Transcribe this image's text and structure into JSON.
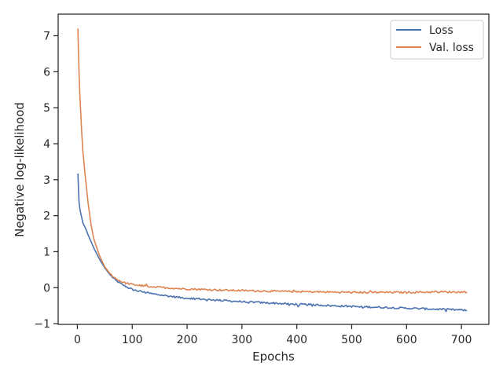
{
  "chart_data": {
    "type": "line",
    "title": "",
    "xlabel": "Epochs",
    "ylabel": "Negative log-likelihood",
    "xlim": [
      -35,
      750
    ],
    "ylim": [
      -1.02,
      7.6
    ],
    "grid": false,
    "legend_position": "top-right",
    "x_ticks": [
      0,
      100,
      200,
      300,
      400,
      500,
      600,
      700
    ],
    "y_ticks": [
      -1,
      0,
      1,
      2,
      3,
      4,
      5,
      6,
      7
    ],
    "y_tick_labels": [
      "−1",
      "0",
      "1",
      "2",
      "3",
      "4",
      "5",
      "6",
      "7"
    ],
    "series": [
      {
        "name": "Loss",
        "color": "#4c72b0",
        "x": [
          1,
          2,
          3,
          5,
          10,
          15,
          20,
          25,
          30,
          40,
          50,
          60,
          70,
          80,
          90,
          100,
          110,
          120,
          130,
          140,
          150,
          160,
          170,
          180,
          190,
          200,
          220,
          240,
          260,
          280,
          300,
          320,
          340,
          360,
          380,
          400,
          420,
          440,
          460,
          480,
          500,
          520,
          540,
          560,
          580,
          600,
          620,
          640,
          660,
          680,
          700,
          710
        ],
        "y": [
          3.17,
          2.8,
          2.4,
          2.15,
          1.8,
          1.65,
          1.45,
          1.28,
          1.1,
          0.8,
          0.55,
          0.35,
          0.2,
          0.1,
          0.02,
          -0.05,
          -0.09,
          -0.12,
          -0.15,
          -0.18,
          -0.2,
          -0.22,
          -0.24,
          -0.26,
          -0.28,
          -0.29,
          -0.31,
          -0.33,
          -0.35,
          -0.37,
          -0.39,
          -0.4,
          -0.42,
          -0.43,
          -0.45,
          -0.46,
          -0.47,
          -0.48,
          -0.5,
          -0.51,
          -0.52,
          -0.53,
          -0.54,
          -0.55,
          -0.56,
          -0.57,
          -0.58,
          -0.59,
          -0.6,
          -0.61,
          -0.62,
          -0.63
        ]
      },
      {
        "name": "Val. loss",
        "color": "#dd8452",
        "x": [
          1,
          2,
          3,
          5,
          8,
          10,
          15,
          20,
          25,
          30,
          40,
          50,
          60,
          70,
          80,
          90,
          100,
          110,
          120,
          130,
          140,
          150,
          170,
          190,
          210,
          230,
          250,
          270,
          300,
          330,
          360,
          400,
          450,
          500,
          550,
          600,
          650,
          700,
          710
        ],
        "y": [
          7.2,
          6.6,
          6.0,
          5.2,
          4.3,
          3.8,
          3.0,
          2.3,
          1.75,
          1.35,
          0.9,
          0.58,
          0.38,
          0.25,
          0.17,
          0.12,
          0.09,
          0.07,
          0.05,
          0.04,
          0.02,
          0.01,
          -0.01,
          -0.03,
          -0.04,
          -0.05,
          -0.06,
          -0.07,
          -0.08,
          -0.09,
          -0.1,
          -0.11,
          -0.12,
          -0.13,
          -0.13,
          -0.13,
          -0.12,
          -0.12,
          -0.12
        ]
      }
    ]
  }
}
